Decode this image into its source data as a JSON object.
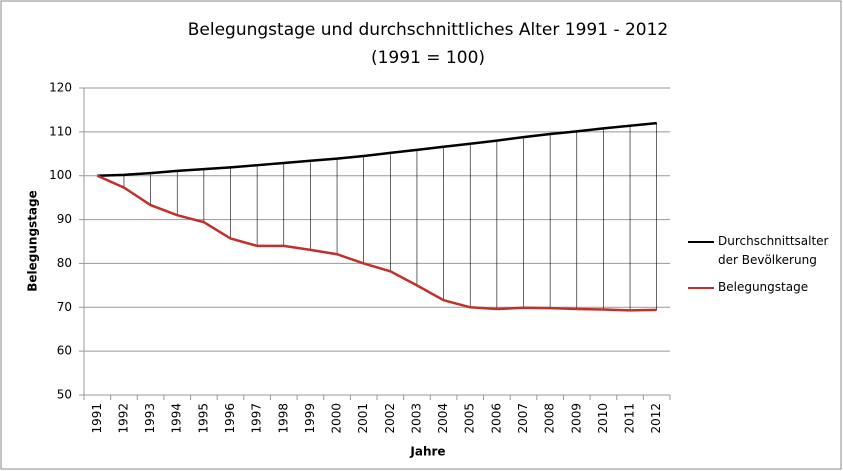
{
  "chart_data": {
    "type": "line",
    "title": "Belegungstage und durchschnittliches Alter 1991 - 2012",
    "subtitle": "(1991 = 100)",
    "x_label": "Jahre",
    "y_label": "Belegungstage",
    "categories": [
      "1991",
      "1992",
      "1993",
      "1994",
      "1995",
      "1996",
      "1997",
      "1998",
      "1999",
      "2000",
      "2001",
      "2002",
      "2003",
      "2004",
      "2005",
      "2006",
      "2007",
      "2008",
      "2009",
      "2010",
      "2011",
      "2012"
    ],
    "series": [
      {
        "name": "Durchschnittsalter der Bevölkerung",
        "color": "#000000",
        "values": [
          100,
          100.2,
          100.6,
          101.1,
          101.5,
          101.9,
          102.4,
          102.9,
          103.4,
          103.9,
          104.5,
          105.2,
          105.9,
          106.6,
          107.3,
          108.0,
          108.8,
          109.5,
          110.1,
          110.8,
          111.4,
          112.0
        ]
      },
      {
        "name": "Belegungstage",
        "color": "#c0312b",
        "values": [
          100,
          97.3,
          93.3,
          91.0,
          89.4,
          85.7,
          84.0,
          84.0,
          83.1,
          82.1,
          80.0,
          78.2,
          75.0,
          71.6,
          70.0,
          69.6,
          69.9,
          69.8,
          69.6,
          69.5,
          69.3,
          69.4
        ]
      }
    ],
    "drop_lines": true,
    "ylim": [
      50,
      120
    ],
    "yticks": [
      50,
      60,
      70,
      80,
      90,
      100,
      110,
      120
    ],
    "grid": true,
    "legend": "right"
  }
}
